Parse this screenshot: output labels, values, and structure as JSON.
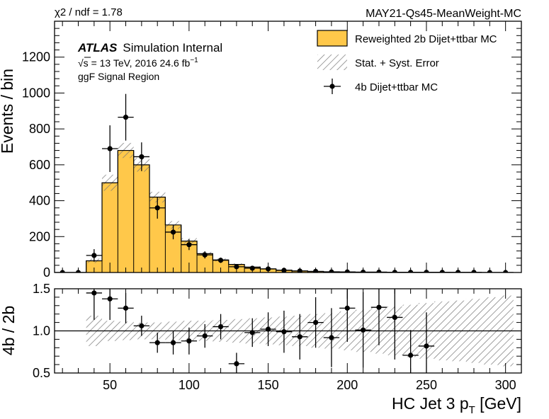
{
  "header": {
    "chi2": "χ2 / ndf = 1.78",
    "tag": "MAY21-Qs45-MeanWeight-MC"
  },
  "labels": {
    "atlas": "ATLAS",
    "atlas_suffix": "Simulation Internal",
    "energy_prefix": "√s = 13 TeV, 2016 24.6 fb",
    "energy_sup": "−1",
    "region": "ggF Signal Region"
  },
  "legend": {
    "model": "Reweighted 2b Dijet+ttbar MC",
    "error": "Stat. + Syst. Error",
    "data": "4b Dijet+ttbar MC"
  },
  "colors": {
    "model_fill": "#ffc84a",
    "model_edge": "#000000",
    "hatch": "#888888"
  },
  "chart_data": [
    {
      "type": "bar",
      "panel": "main",
      "ylabel": "Events / bin",
      "xlim": [
        15,
        310
      ],
      "ylim": [
        0,
        1400
      ],
      "yticks": [
        0,
        200,
        400,
        600,
        800,
        1000,
        1200
      ],
      "bin_edges": [
        15,
        25,
        35,
        45,
        55,
        65,
        75,
        85,
        95,
        105,
        115,
        125,
        135,
        145,
        155,
        165,
        175,
        185,
        195,
        205,
        215,
        225,
        235,
        245,
        255,
        265,
        275,
        285,
        295,
        305
      ],
      "series": [
        {
          "name": "Reweighted 2b Dijet+ttbar MC",
          "values": [
            0,
            0,
            65,
            500,
            680,
            600,
            420,
            265,
            175,
            105,
            70,
            45,
            30,
            20,
            13,
            9,
            6,
            4,
            3,
            2,
            2,
            1,
            1,
            1,
            1,
            0,
            0,
            0,
            0
          ],
          "errors": [
            0,
            0,
            12,
            45,
            42,
            38,
            30,
            22,
            16,
            10,
            8,
            6,
            4,
            3,
            3,
            2,
            2,
            2,
            1,
            1,
            1,
            1,
            1,
            1,
            1,
            0,
            0,
            0,
            0
          ]
        },
        {
          "name": "4b Dijet+ttbar MC",
          "x": [
            20,
            30,
            40,
            50,
            60,
            70,
            80,
            90,
            100,
            110,
            120,
            130,
            140,
            150,
            160,
            170,
            180,
            190,
            200,
            210,
            220,
            230,
            240,
            250,
            260,
            270,
            280,
            290,
            300
          ],
          "values": [
            0,
            0,
            95,
            690,
            865,
            645,
            360,
            225,
            155,
            98,
            68,
            32,
            24,
            20,
            12,
            8,
            6,
            3,
            3,
            2,
            2,
            1,
            1,
            1,
            1,
            1,
            1,
            0,
            0
          ],
          "errors": [
            0,
            0,
            35,
            130,
            130,
            80,
            60,
            40,
            30,
            20,
            15,
            8,
            7,
            6,
            4,
            4,
            3,
            2,
            2,
            2,
            2,
            1,
            1,
            1,
            1,
            1,
            1,
            0,
            0
          ]
        }
      ]
    },
    {
      "type": "scatter",
      "panel": "ratio",
      "xlabel": "HC Jet 3 pT [GeV]",
      "xlabel_main": "HC Jet 3 p",
      "xlabel_sub": "T",
      "xlabel_tail": " [GeV]",
      "ylabel": "4b / 2b",
      "xlim": [
        15,
        310
      ],
      "ylim": [
        0.5,
        1.5
      ],
      "yticks": [
        "0.5",
        "1.0",
        "1.5"
      ],
      "xticks": [
        50,
        100,
        150,
        200,
        250,
        300
      ],
      "reference_line": 1.0,
      "band_halfwidth": [
        0.18,
        0.12,
        0.11,
        0.1,
        0.1,
        0.11,
        0.12,
        0.12,
        0.13,
        0.14,
        0.15,
        0.16,
        0.17,
        0.18,
        0.2,
        0.21,
        0.23,
        0.25,
        0.27,
        0.29,
        0.31,
        0.33,
        0.35,
        0.36,
        0.38,
        0.4,
        0.42
      ],
      "band_edges": [
        35,
        45,
        55,
        65,
        75,
        85,
        95,
        105,
        115,
        125,
        135,
        145,
        155,
        165,
        175,
        185,
        195,
        205,
        215,
        225,
        235,
        245,
        255,
        265,
        275,
        285,
        295,
        305
      ],
      "x": [
        40,
        50,
        60,
        70,
        80,
        90,
        100,
        110,
        120,
        130,
        140,
        150,
        160,
        170,
        180,
        190,
        200,
        210,
        220,
        230,
        240,
        250
      ],
      "values": [
        1.45,
        1.38,
        1.27,
        1.06,
        0.86,
        0.86,
        0.88,
        0.94,
        1.05,
        0.61,
        0.98,
        1.02,
        0.99,
        0.93,
        1.1,
        0.92,
        1.27,
        1.01,
        1.28,
        1.16,
        0.71,
        0.82
      ],
      "errors": [
        0.32,
        0.25,
        0.18,
        0.12,
        0.12,
        0.14,
        0.16,
        0.14,
        0.15,
        0.13,
        0.17,
        0.2,
        0.25,
        0.27,
        0.3,
        0.35,
        0.4,
        0.45,
        0.45,
        0.5,
        0.3,
        0.4
      ]
    }
  ]
}
